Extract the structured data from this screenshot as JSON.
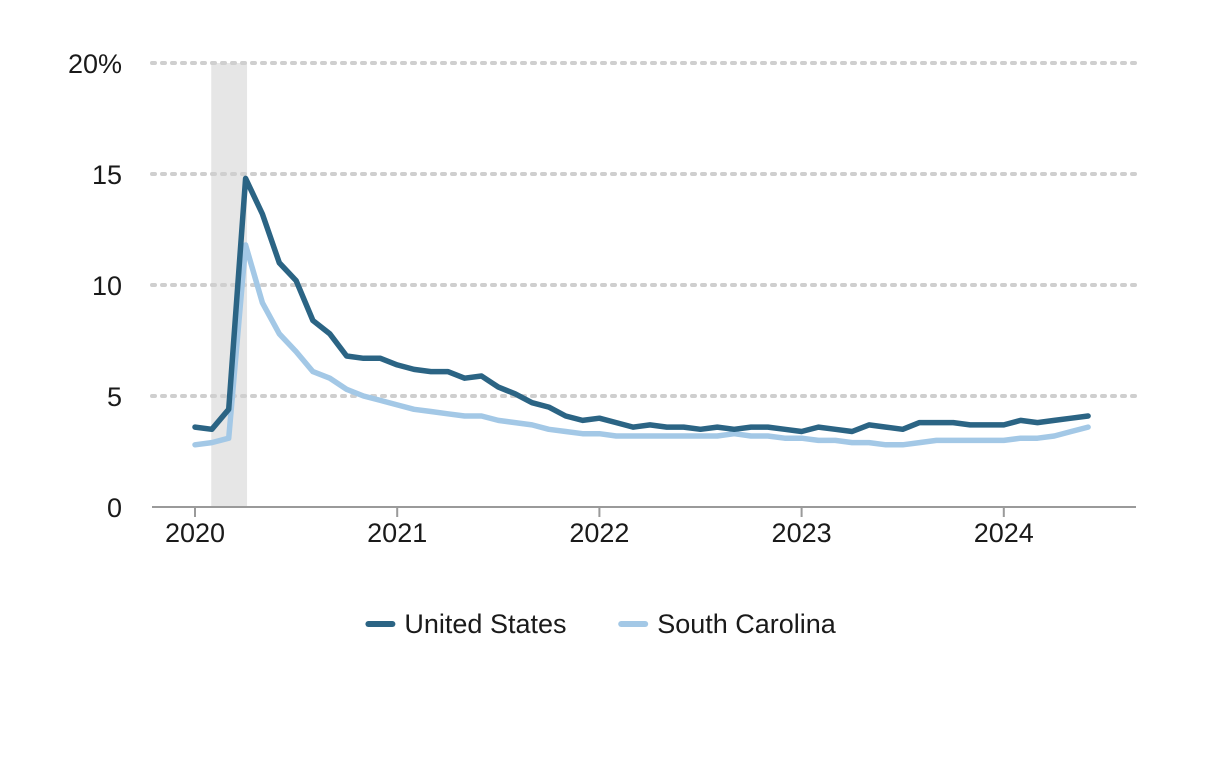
{
  "chart_data": {
    "type": "line",
    "y_unit_suffix": "%",
    "ylim": [
      0,
      20
    ],
    "y_ticks": [
      0,
      5,
      10,
      15,
      20
    ],
    "y_tick_labels": [
      "0",
      "5",
      "10",
      "15",
      "20%"
    ],
    "x_ticks": [
      2020,
      2021,
      2022,
      2023,
      2024
    ],
    "x_tick_labels": [
      "2020",
      "2021",
      "2022",
      "2023",
      "2024"
    ],
    "grid": "horizontal dotted",
    "legend_position": "bottom-center",
    "shaded_region": {
      "start": "2020-02",
      "end": "2020-04"
    },
    "x": [
      "2020-01",
      "2020-02",
      "2020-03",
      "2020-04",
      "2020-05",
      "2020-06",
      "2020-07",
      "2020-08",
      "2020-09",
      "2020-10",
      "2020-11",
      "2020-12",
      "2021-01",
      "2021-02",
      "2021-03",
      "2021-04",
      "2021-05",
      "2021-06",
      "2021-07",
      "2021-08",
      "2021-09",
      "2021-10",
      "2021-11",
      "2021-12",
      "2022-01",
      "2022-02",
      "2022-03",
      "2022-04",
      "2022-05",
      "2022-06",
      "2022-07",
      "2022-08",
      "2022-09",
      "2022-10",
      "2022-11",
      "2022-12",
      "2023-01",
      "2023-02",
      "2023-03",
      "2023-04",
      "2023-05",
      "2023-06",
      "2023-07",
      "2023-08",
      "2023-09",
      "2023-10",
      "2023-11",
      "2023-12",
      "2024-01",
      "2024-02",
      "2024-03",
      "2024-04",
      "2024-05",
      "2024-06"
    ],
    "series": [
      {
        "name": "United States",
        "color": "#2b6484",
        "values": [
          3.6,
          3.5,
          4.4,
          14.8,
          13.2,
          11.0,
          10.2,
          8.4,
          7.8,
          6.8,
          6.7,
          6.7,
          6.4,
          6.2,
          6.1,
          6.1,
          5.8,
          5.9,
          5.4,
          5.1,
          4.7,
          4.5,
          4.1,
          3.9,
          4.0,
          3.8,
          3.6,
          3.7,
          3.6,
          3.6,
          3.5,
          3.6,
          3.5,
          3.6,
          3.6,
          3.5,
          3.4,
          3.6,
          3.5,
          3.4,
          3.7,
          3.6,
          3.5,
          3.8,
          3.8,
          3.8,
          3.7,
          3.7,
          3.7,
          3.9,
          3.8,
          3.9,
          4.0,
          4.1
        ]
      },
      {
        "name": "South Carolina",
        "color": "#a3c8e6",
        "values": [
          2.8,
          2.9,
          3.1,
          11.8,
          9.2,
          7.8,
          7.0,
          6.1,
          5.8,
          5.3,
          5.0,
          4.8,
          4.6,
          4.4,
          4.3,
          4.2,
          4.1,
          4.1,
          3.9,
          3.8,
          3.7,
          3.5,
          3.4,
          3.3,
          3.3,
          3.2,
          3.2,
          3.2,
          3.2,
          3.2,
          3.2,
          3.2,
          3.3,
          3.2,
          3.2,
          3.1,
          3.1,
          3.0,
          3.0,
          2.9,
          2.9,
          2.8,
          2.8,
          2.9,
          3.0,
          3.0,
          3.0,
          3.0,
          3.0,
          3.1,
          3.1,
          3.2,
          3.4,
          3.6
        ]
      }
    ]
  }
}
